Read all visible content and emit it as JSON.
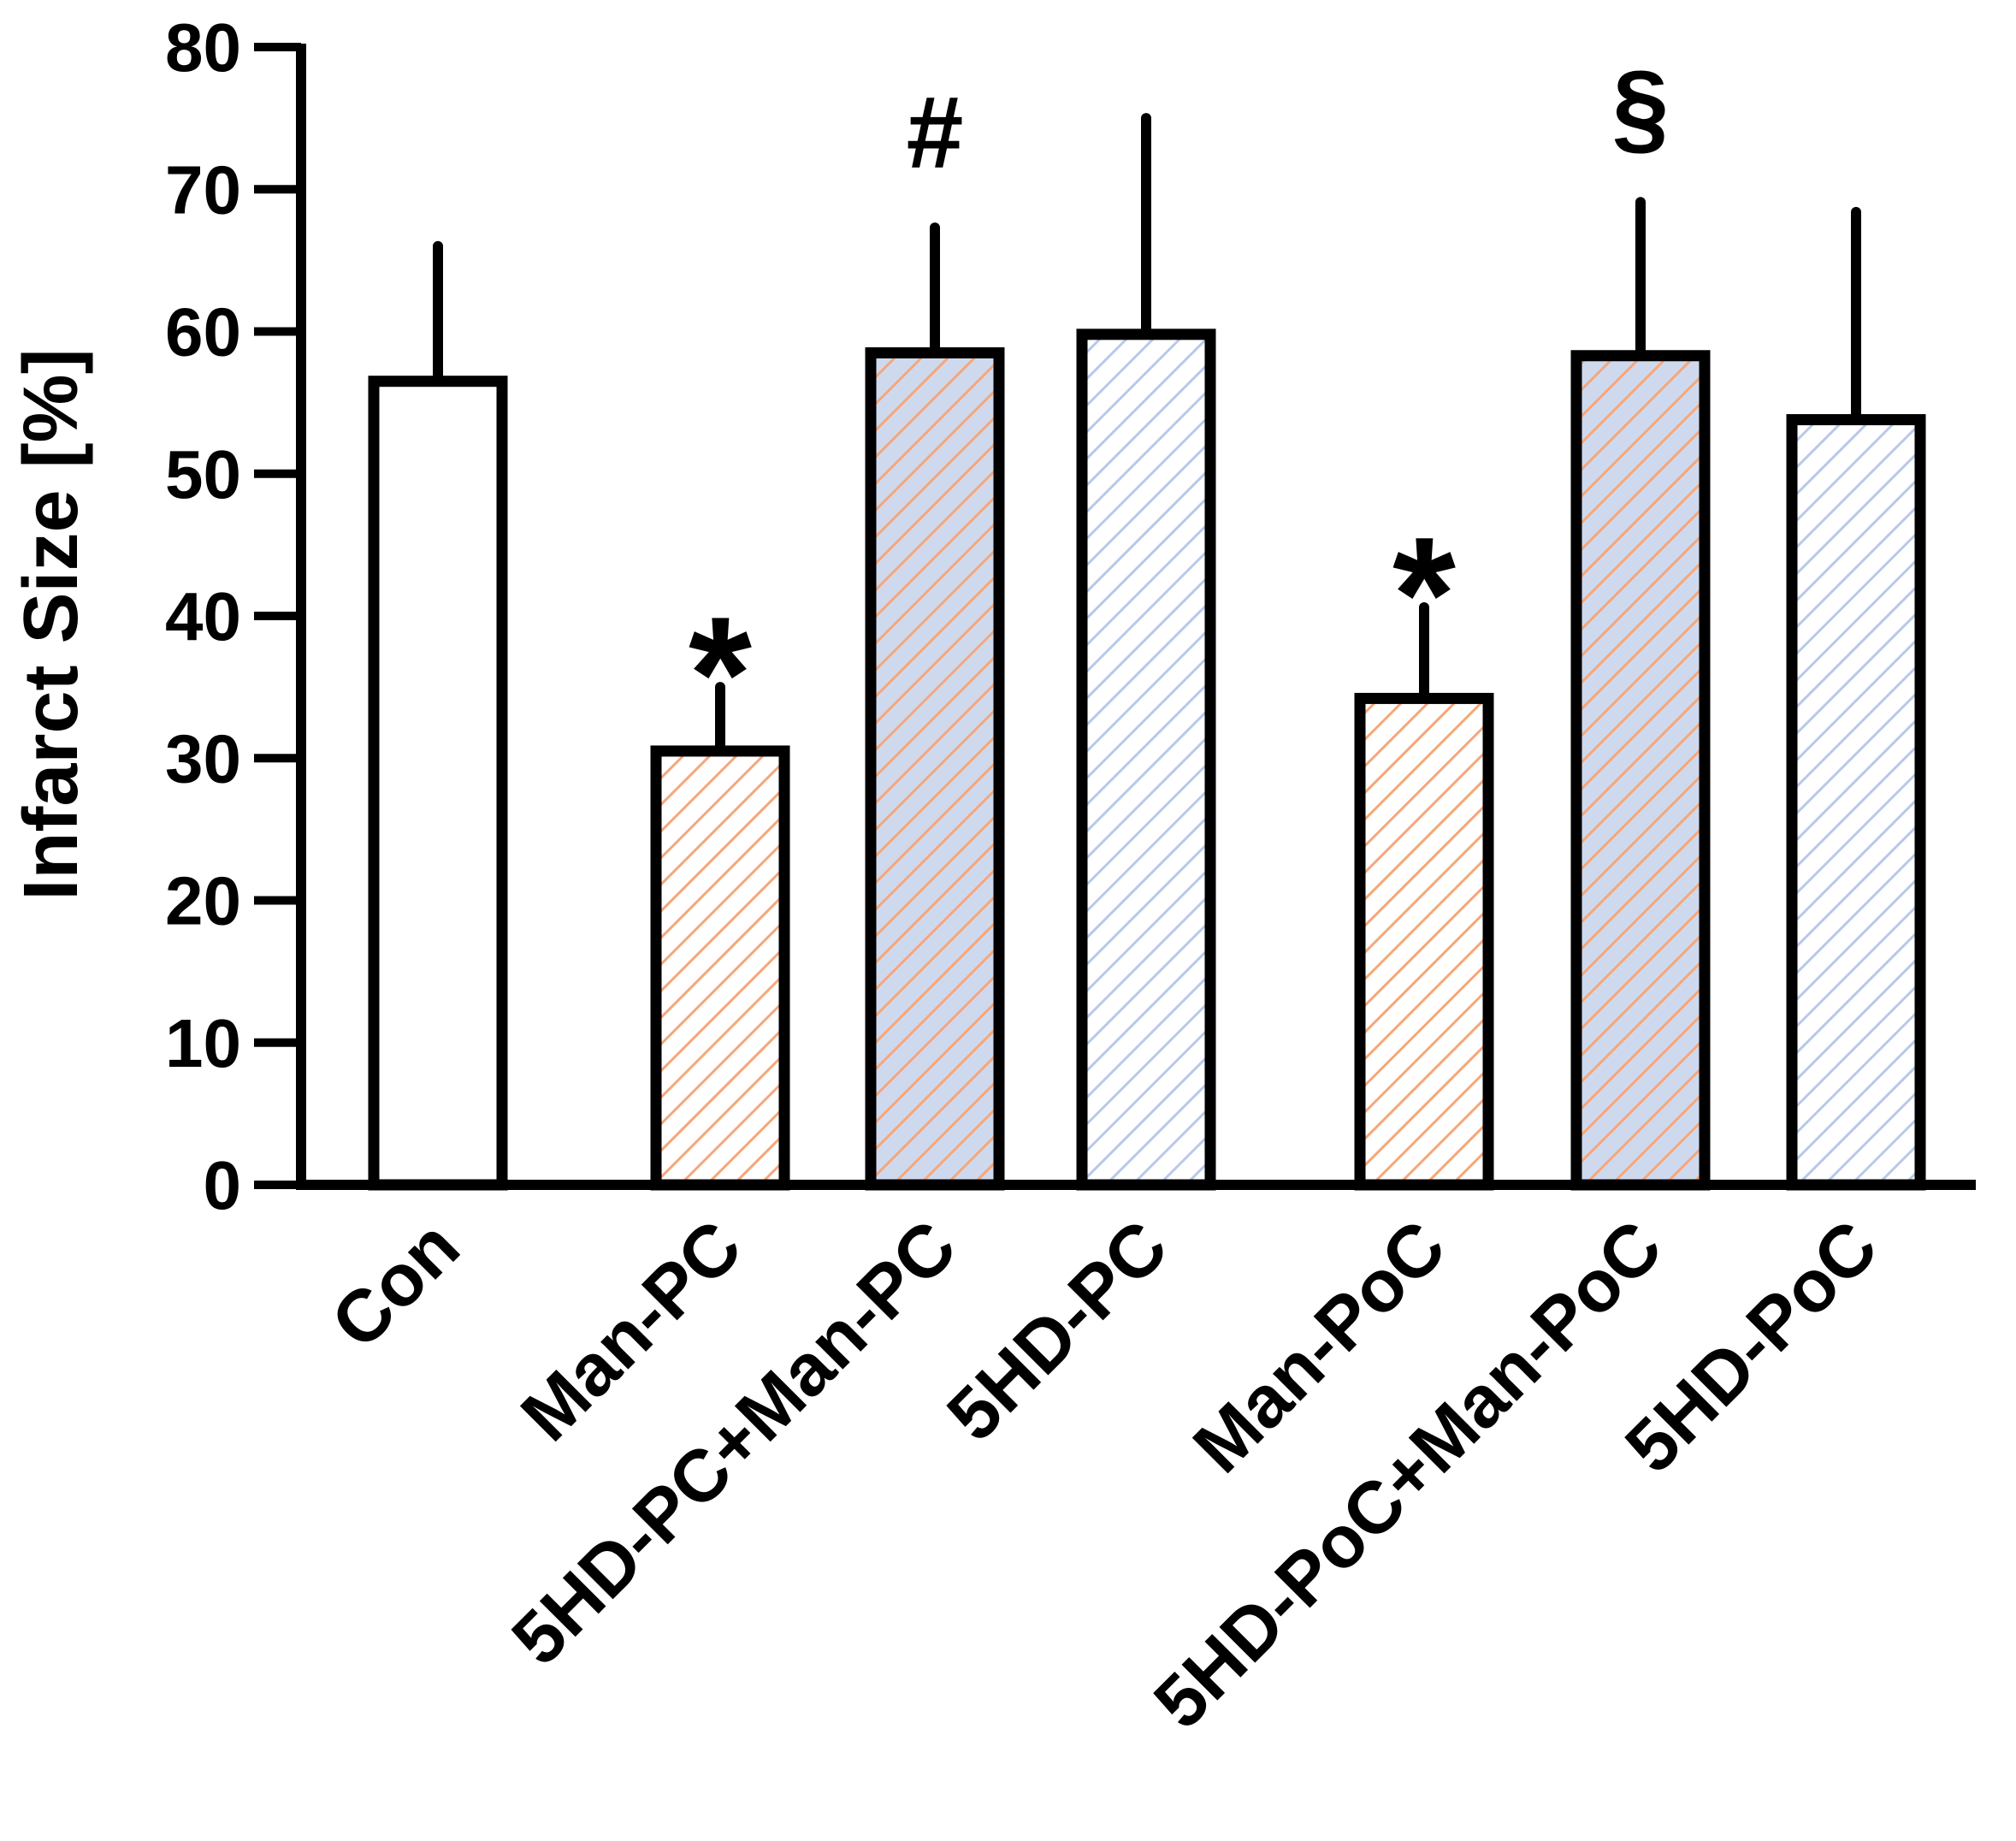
{
  "chart_data": {
    "type": "bar",
    "title": "",
    "xlabel": "",
    "ylabel": "Infarct Size [%]",
    "ylim": [
      0,
      80
    ],
    "yticks": [
      0,
      10,
      20,
      30,
      40,
      50,
      60,
      70,
      80
    ],
    "categories": [
      "Con",
      "Man-PC",
      "5HD-PC+Man-PC",
      "5HD-PC",
      "Man-PoC",
      "5HD-PoC+Man-PoC",
      "5HD-PoC"
    ],
    "values": [
      56.5,
      30.5,
      58.5,
      59.8,
      34.2,
      58.3,
      53.8
    ],
    "error": [
      9.5,
      4.5,
      8.8,
      15.2,
      6.4,
      10.8,
      14.6
    ],
    "fills": [
      "none",
      "orange-hatch",
      "orange-blue-hatch",
      "blue-hatch",
      "orange-hatch",
      "orange-blue-hatch",
      "blue-hatch"
    ],
    "colors": {
      "orange": "#f5a77a",
      "blue": "#b8c9ea",
      "outline": "#000000"
    },
    "annotations": [
      {
        "category": "Man-PC",
        "text": "*"
      },
      {
        "category": "5HD-PC+Man-PC",
        "text": "#"
      },
      {
        "category": "Man-PoC",
        "text": "*"
      },
      {
        "category": "5HD-PoC+Man-PoC",
        "text": "§"
      }
    ],
    "grid": false,
    "legend": "none"
  }
}
